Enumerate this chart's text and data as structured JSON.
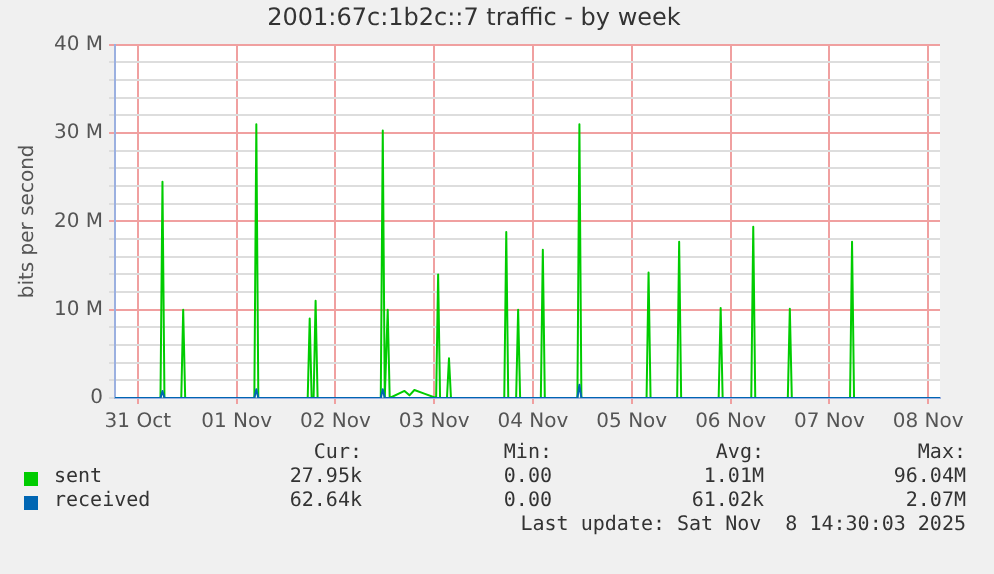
{
  "chart_data": {
    "type": "line",
    "title": "2001:67c:1b2c::7 traffic - by week",
    "ylabel": "bits per second",
    "xlim": [
      "2025-10-30T18:29",
      "2025-11-08T02:53"
    ],
    "xticks": [
      {
        "value": "2025-10-31",
        "label": "31 Oct"
      },
      {
        "value": "2025-11-01",
        "label": "01 Nov"
      },
      {
        "value": "2025-11-02",
        "label": "02 Nov"
      },
      {
        "value": "2025-11-03",
        "label": "03 Nov"
      },
      {
        "value": "2025-11-04",
        "label": "04 Nov"
      },
      {
        "value": "2025-11-05",
        "label": "05 Nov"
      },
      {
        "value": "2025-11-06",
        "label": "06 Nov"
      },
      {
        "value": "2025-11-07",
        "label": "07 Nov"
      },
      {
        "value": "2025-11-08",
        "label": "08 Nov"
      }
    ],
    "ylim": [
      0,
      40
    ],
    "yticks": [
      0,
      {
        "value": 2,
        "label": null
      },
      {
        "value": 4,
        "label": null
      },
      {
        "value": 6,
        "label": null
      },
      {
        "value": 8,
        "label": null
      },
      {
        "value": 10,
        "label": "10 M"
      },
      {
        "value": 12,
        "label": null
      },
      {
        "value": 14,
        "label": null
      },
      {
        "value": 16,
        "label": null
      },
      {
        "value": 18,
        "label": null
      },
      {
        "value": 20,
        "label": "20 M"
      },
      {
        "value": 22,
        "label": null
      },
      {
        "value": 24,
        "label": null
      },
      {
        "value": 26,
        "label": null
      },
      {
        "value": 28,
        "label": null
      },
      {
        "value": 30,
        "label": "30 M"
      },
      {
        "value": 32,
        "label": null
      },
      {
        "value": 34,
        "label": null
      },
      {
        "value": 36,
        "label": null
      },
      {
        "value": 38,
        "label": null
      },
      {
        "value": 40,
        "label": "40 M"
      }
    ],
    "grid": true,
    "legend": "bottom",
    "marker": "none",
    "line_style": "solid",
    "series": [
      {
        "name": "sent",
        "color": "#00cc00",
        "x": [
          "2025-10-30T18:29",
          "2025-10-31T05:31",
          "2025-10-31T06:00",
          "2025-10-31T06:29",
          "2025-10-31T10:34",
          "2025-10-31T11:02",
          "2025-10-31T11:31",
          "2025-11-01T04:19",
          "2025-11-01T04:48",
          "2025-11-01T05:17",
          "2025-11-01T17:17",
          "2025-11-01T17:46",
          "2025-11-01T18:14",
          "2025-11-01T18:43",
          "2025-11-01T19:12",
          "2025-11-01T19:41",
          "2025-11-02T11:02",
          "2025-11-02T11:31",
          "2025-11-02T12:00",
          "2025-11-02T12:43",
          "2025-11-02T13:12",
          "2025-11-02T16:48",
          "2025-11-02T18:00",
          "2025-11-02T19:12",
          "2025-11-02T21:36",
          "2025-11-03T00:29",
          "2025-11-03T00:58",
          "2025-11-03T01:26",
          "2025-11-03T03:07",
          "2025-11-03T03:36",
          "2025-11-03T04:05",
          "2025-11-03T17:02",
          "2025-11-03T17:31",
          "2025-11-03T18:00",
          "2025-11-03T19:55",
          "2025-11-03T20:24",
          "2025-11-03T20:53",
          "2025-11-04T01:55",
          "2025-11-04T02:24",
          "2025-11-04T02:53",
          "2025-11-04T10:48",
          "2025-11-04T11:17",
          "2025-11-04T11:46",
          "2025-11-05T03:36",
          "2025-11-05T04:05",
          "2025-11-05T04:34",
          "2025-11-05T11:02",
          "2025-11-05T11:31",
          "2025-11-05T12:00",
          "2025-11-05T21:07",
          "2025-11-05T21:36",
          "2025-11-05T22:05",
          "2025-11-06T05:02",
          "2025-11-06T05:31",
          "2025-11-06T06:00",
          "2025-11-06T13:55",
          "2025-11-06T14:24",
          "2025-11-06T14:53",
          "2025-11-07T05:02",
          "2025-11-07T05:31",
          "2025-11-07T06:00",
          "2025-11-08T02:53"
        ],
        "values": [
          0,
          0,
          24.5,
          0,
          0,
          10,
          0,
          0,
          31,
          0,
          0,
          9,
          0,
          0,
          11,
          0,
          0,
          30.3,
          0,
          10,
          0,
          0.8,
          0.3,
          0.9,
          0.5,
          0,
          14,
          0,
          0,
          4.5,
          0,
          0,
          18.8,
          0,
          0,
          10,
          0,
          0,
          16.8,
          0,
          0,
          31,
          0,
          0,
          14.2,
          0,
          0,
          17.7,
          0,
          0,
          10.2,
          0,
          0,
          19.4,
          0,
          0,
          10.1,
          0,
          0,
          17.7,
          0,
          0
        ]
      },
      {
        "name": "received",
        "color": "#0066b3",
        "x": [
          "2025-10-30T18:29",
          "2025-10-31T05:31",
          "2025-10-31T06:00",
          "2025-10-31T06:29",
          "2025-11-01T04:19",
          "2025-11-01T04:48",
          "2025-11-01T05:17",
          "2025-11-02T11:02",
          "2025-11-02T11:31",
          "2025-11-02T12:00",
          "2025-11-04T10:48",
          "2025-11-04T11:17",
          "2025-11-04T11:46",
          "2025-11-08T02:53"
        ],
        "values": [
          0,
          0,
          0.8,
          0,
          0,
          1,
          0,
          0,
          1,
          0,
          0,
          1.5,
          0,
          0
        ]
      }
    ],
    "annotations": [
      "Cur:",
      "Min:",
      "Avg:",
      "Max:",
      "27.95k",
      "0.00",
      "1.01M",
      "96.04M",
      "62.64k",
      "0.00",
      "61.02k",
      "2.07M",
      "Last update: Sat Nov  8 14:30:03 2025"
    ]
  }
}
